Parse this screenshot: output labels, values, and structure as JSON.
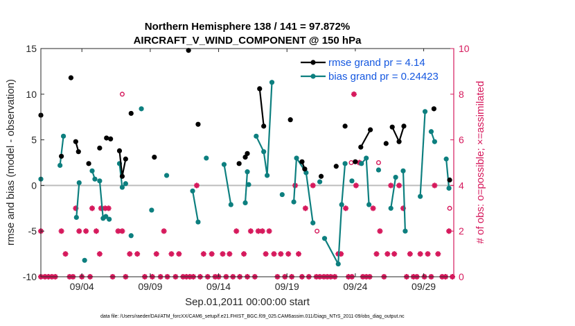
{
  "chart_data": {
    "type": "line",
    "title": "Northern Hemisphere 138 / 141 = 97.872%",
    "subtitle": "AIRCRAFT_V_WIND_COMPONENT @ 150 hPa",
    "xlabel": "Sep.01,2011 00:00:00 start",
    "ylabel": "rmse and bias (model - observation)",
    "ylabel_right": "# of obs: o=possible; ×=assimilated",
    "footnote": "data file: /Users/raeder/DAI/ATM_forcXX/CAM6_setup/f.e21.FHIST_BGC.f09_025.CAM6assim.011/Diags_NTrS_2011-09/obs_diag_output.nc",
    "x_unit": "day of Sep 2011",
    "xlim": [
      1,
      31.2
    ],
    "ylim": [
      -10,
      15
    ],
    "ylim_right": [
      0,
      10
    ],
    "xticks": [
      4,
      9,
      14,
      19,
      24,
      29
    ],
    "xtick_labels": [
      "09/04",
      "09/09",
      "09/14",
      "09/19",
      "09/24",
      "09/29"
    ],
    "yticks": [
      -10,
      -5,
      0,
      5,
      10,
      15
    ],
    "yticks_right": [
      0,
      2,
      4,
      6,
      8,
      10
    ],
    "grid": false,
    "legend_position": "top-right",
    "colors": {
      "rmse": "#000000",
      "bias": "#0d7f7f",
      "obs": "#d6195c",
      "zero_line": "#bdbdbd",
      "legend_text": "#1457e0"
    },
    "series": [
      {
        "name": "rmse grand pr = 4.14",
        "axis": "left",
        "points": [
          [
            1.0,
            7.7
          ],
          [
            2.5,
            3.2
          ],
          [
            3.2,
            11.8
          ],
          [
            3.55,
            4.8
          ],
          [
            3.75,
            3.7
          ],
          [
            4.5,
            2.4
          ],
          [
            5.3,
            4.1
          ],
          [
            5.8,
            5.2
          ],
          [
            6.1,
            5.1
          ],
          [
            6.75,
            3.8
          ],
          [
            6.95,
            1.0
          ],
          [
            7.2,
            2.9
          ],
          [
            7.6,
            7.9
          ],
          [
            9.3,
            3.1
          ],
          [
            11.8,
            14.8
          ],
          [
            12.5,
            6.7
          ],
          [
            15.5,
            2.4
          ],
          [
            15.95,
            3.1
          ],
          [
            16.1,
            3.5
          ],
          [
            17.0,
            10.6
          ],
          [
            17.3,
            6.5
          ],
          [
            19.25,
            7.2
          ],
          [
            20.1,
            2.6
          ],
          [
            20.3,
            1.8
          ],
          [
            21.5,
            1.0
          ],
          [
            22.6,
            2.1
          ],
          [
            23.25,
            6.5
          ],
          [
            24.0,
            2.6
          ],
          [
            24.4,
            4.2
          ],
          [
            25.1,
            6.1
          ],
          [
            26.25,
            4.6
          ],
          [
            26.7,
            6.4
          ],
          [
            27.2,
            4.8
          ],
          [
            27.55,
            6.5
          ],
          [
            29.75,
            8.4
          ],
          [
            30.9,
            0.6
          ]
        ],
        "connected": [
          [
            [
              3.55,
              4.8
            ],
            [
              3.75,
              3.7
            ]
          ],
          [
            [
              6.75,
              3.8
            ],
            [
              6.95,
              1.0
            ],
            [
              7.2,
              2.9
            ]
          ],
          [
            [
              17.0,
              10.6
            ],
            [
              17.3,
              6.5
            ]
          ],
          [
            [
              20.1,
              2.6
            ],
            [
              20.3,
              1.8
            ]
          ],
          [
            [
              24.4,
              4.2
            ],
            [
              25.1,
              6.1
            ]
          ],
          [
            [
              26.7,
              6.4
            ],
            [
              27.2,
              4.8
            ],
            [
              27.55,
              6.5
            ]
          ]
        ]
      },
      {
        "name": "bias grand pr = 0.24423",
        "axis": "left",
        "points": [
          [
            1.0,
            0.7
          ],
          [
            2.4,
            2.2
          ],
          [
            2.65,
            5.4
          ],
          [
            3.6,
            -3.5
          ],
          [
            3.8,
            0.3
          ],
          [
            4.2,
            -8.2
          ],
          [
            4.75,
            1.6
          ],
          [
            4.95,
            0.7
          ],
          [
            5.3,
            0.5
          ],
          [
            5.55,
            -3.6
          ],
          [
            5.75,
            -3.4
          ],
          [
            6.0,
            -3.7
          ],
          [
            6.75,
            2.4
          ],
          [
            6.95,
            -0.2
          ],
          [
            7.2,
            0.2
          ],
          [
            7.6,
            -5.5
          ],
          [
            8.35,
            8.4
          ],
          [
            9.1,
            -2.7
          ],
          [
            10.2,
            1.1
          ],
          [
            12.1,
            -0.6
          ],
          [
            12.5,
            -4.0
          ],
          [
            13.1,
            3.0
          ],
          [
            14.4,
            2.3
          ],
          [
            14.9,
            -2.1
          ],
          [
            15.95,
            -1.9
          ],
          [
            16.1,
            1.5
          ],
          [
            16.2,
            0.1
          ],
          [
            16.75,
            5.4
          ],
          [
            17.3,
            3.7
          ],
          [
            17.55,
            1.1
          ],
          [
            17.9,
            11.3
          ],
          [
            18.65,
            -1.0
          ],
          [
            19.5,
            -1.8
          ],
          [
            19.7,
            3.0
          ],
          [
            20.4,
            1.4
          ],
          [
            20.9,
            -4.1
          ],
          [
            21.4,
            0.4
          ],
          [
            21.75,
            -5.8
          ],
          [
            22.75,
            -8.6
          ],
          [
            23.0,
            -2.1
          ],
          [
            23.25,
            2.4
          ],
          [
            23.75,
            0.5
          ],
          [
            24.45,
            2.4
          ],
          [
            24.8,
            3.0
          ],
          [
            25.0,
            -2.1
          ],
          [
            25.7,
            1.7
          ],
          [
            26.6,
            -2.5
          ],
          [
            26.95,
            0.9
          ],
          [
            27.5,
            1.6
          ],
          [
            27.65,
            -5.0
          ],
          [
            28.75,
            -1.2
          ],
          [
            29.1,
            8.1
          ],
          [
            29.55,
            5.9
          ],
          [
            29.8,
            4.8
          ],
          [
            30.65,
            2.9
          ],
          [
            30.85,
            -0.3
          ]
        ],
        "connected": [
          [
            [
              2.4,
              2.2
            ],
            [
              2.65,
              5.4
            ]
          ],
          [
            [
              3.6,
              -3.5
            ],
            [
              3.8,
              0.3
            ]
          ],
          [
            [
              4.75,
              1.6
            ],
            [
              4.95,
              0.7
            ]
          ],
          [
            [
              5.3,
              0.5
            ],
            [
              5.55,
              -3.6
            ]
          ],
          [
            [
              6.75,
              2.4
            ],
            [
              6.95,
              -0.2
            ],
            [
              7.2,
              0.2
            ]
          ],
          [
            [
              12.1,
              -0.6
            ],
            [
              12.5,
              -4.0
            ]
          ],
          [
            [
              14.4,
              2.3
            ],
            [
              14.9,
              -2.1
            ]
          ],
          [
            [
              15.95,
              -1.9
            ],
            [
              16.1,
              1.5
            ]
          ],
          [
            [
              16.75,
              5.4
            ],
            [
              17.3,
              3.7
            ],
            [
              17.55,
              1.1
            ],
            [
              17.9,
              11.3
            ]
          ],
          [
            [
              19.5,
              -1.8
            ],
            [
              19.7,
              3.0
            ],
            [
              20.4,
              1.4
            ],
            [
              20.9,
              -4.1
            ]
          ],
          [
            [
              21.75,
              -5.8
            ],
            [
              22.75,
              -8.6
            ],
            [
              23.0,
              -2.1
            ],
            [
              23.25,
              2.4
            ]
          ],
          [
            [
              24.45,
              2.4
            ],
            [
              24.8,
              3.0
            ],
            [
              25.0,
              -2.1
            ]
          ],
          [
            [
              26.6,
              -2.5
            ],
            [
              26.95,
              0.9
            ]
          ],
          [
            [
              27.5,
              1.6
            ],
            [
              27.65,
              -5.0
            ]
          ],
          [
            [
              28.75,
              -1.2
            ],
            [
              29.1,
              8.1
            ]
          ],
          [
            [
              29.55,
              5.9
            ],
            [
              29.8,
              4.8
            ]
          ],
          [
            [
              30.65,
              2.9
            ],
            [
              30.85,
              -0.3
            ]
          ]
        ]
      }
    ],
    "obs_assimilated": [
      [
        1.0,
        2
      ],
      [
        1.0,
        0
      ],
      [
        1.3,
        0
      ],
      [
        1.55,
        0
      ],
      [
        1.8,
        0
      ],
      [
        2.05,
        0
      ],
      [
        2.5,
        2
      ],
      [
        2.8,
        1
      ],
      [
        3.1,
        0
      ],
      [
        3.35,
        0
      ],
      [
        3.55,
        3
      ],
      [
        3.8,
        2
      ],
      [
        4.0,
        0
      ],
      [
        4.3,
        2
      ],
      [
        4.6,
        0
      ],
      [
        4.75,
        3
      ],
      [
        5.05,
        2
      ],
      [
        5.3,
        1
      ],
      [
        5.4,
        3
      ],
      [
        5.7,
        3
      ],
      [
        5.95,
        3
      ],
      [
        6.25,
        0
      ],
      [
        6.65,
        2
      ],
      [
        6.95,
        2
      ],
      [
        7.2,
        0
      ],
      [
        7.5,
        1
      ],
      [
        8.05,
        1
      ],
      [
        8.6,
        0
      ],
      [
        9.15,
        0
      ],
      [
        9.45,
        1
      ],
      [
        9.75,
        0
      ],
      [
        10.0,
        2
      ],
      [
        10.25,
        0
      ],
      [
        10.55,
        1
      ],
      [
        10.85,
        0
      ],
      [
        11.1,
        1
      ],
      [
        11.4,
        0
      ],
      [
        11.65,
        0
      ],
      [
        11.9,
        0
      ],
      [
        12.15,
        0
      ],
      [
        12.4,
        4
      ],
      [
        12.65,
        0
      ],
      [
        12.9,
        1
      ],
      [
        13.2,
        0
      ],
      [
        13.5,
        1
      ],
      [
        13.75,
        0
      ],
      [
        14.0,
        0
      ],
      [
        14.3,
        1
      ],
      [
        14.55,
        0
      ],
      [
        14.8,
        1
      ],
      [
        15.05,
        0
      ],
      [
        15.3,
        2
      ],
      [
        15.55,
        0
      ],
      [
        15.85,
        1
      ],
      [
        16.1,
        0
      ],
      [
        16.35,
        2
      ],
      [
        16.65,
        0
      ],
      [
        16.9,
        2
      ],
      [
        17.2,
        2
      ],
      [
        17.45,
        1
      ],
      [
        17.7,
        2
      ],
      [
        18.05,
        1
      ],
      [
        18.3,
        0
      ],
      [
        18.55,
        1
      ],
      [
        18.85,
        0
      ],
      [
        19.1,
        1
      ],
      [
        19.35,
        0
      ],
      [
        19.6,
        4
      ],
      [
        19.85,
        1
      ],
      [
        20.1,
        0
      ],
      [
        20.35,
        3
      ],
      [
        20.6,
        0
      ],
      [
        20.9,
        4
      ],
      [
        21.15,
        0
      ],
      [
        21.4,
        0
      ],
      [
        21.7,
        0
      ],
      [
        21.95,
        0
      ],
      [
        22.2,
        0
      ],
      [
        22.5,
        0
      ],
      [
        22.75,
        1
      ],
      [
        22.95,
        1
      ],
      [
        23.3,
        3
      ],
      [
        23.5,
        0
      ],
      [
        23.75,
        0
      ],
      [
        23.9,
        8
      ],
      [
        24.05,
        4
      ],
      [
        24.3,
        5
      ],
      [
        24.55,
        0
      ],
      [
        24.8,
        0
      ],
      [
        25.05,
        0
      ],
      [
        25.3,
        3
      ],
      [
        25.55,
        1
      ],
      [
        25.8,
        2
      ],
      [
        26.1,
        0
      ],
      [
        26.35,
        1
      ],
      [
        26.6,
        4
      ],
      [
        26.85,
        1
      ],
      [
        27.2,
        4
      ],
      [
        27.5,
        3
      ],
      [
        27.75,
        0
      ],
      [
        28.0,
        1
      ],
      [
        28.25,
        0
      ],
      [
        28.5,
        0
      ],
      [
        28.75,
        1
      ],
      [
        29.05,
        0
      ],
      [
        29.3,
        1
      ],
      [
        29.55,
        0
      ],
      [
        29.8,
        4
      ],
      [
        30.05,
        1
      ],
      [
        30.35,
        0
      ],
      [
        30.6,
        0
      ],
      [
        30.85,
        2
      ],
      [
        31.1,
        0
      ]
    ],
    "obs_possible": [
      [
        6.95,
        8
      ],
      [
        21.2,
        2
      ],
      [
        23.7,
        5
      ],
      [
        25.7,
        5
      ],
      [
        30.9,
        3
      ]
    ]
  }
}
